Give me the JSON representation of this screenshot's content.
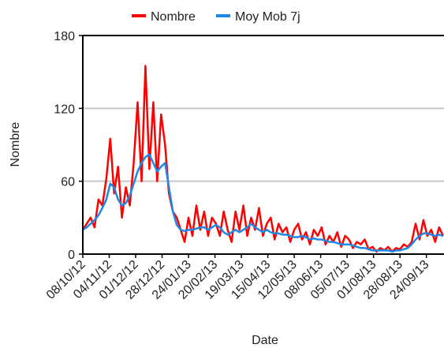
{
  "chart_data": {
    "type": "line",
    "xlabel": "Date",
    "ylabel": "Nombre",
    "x": [
      "08/10/12",
      "12/10/12",
      "16/10/12",
      "20/10/12",
      "24/10/12",
      "28/10/12",
      "01/11/12",
      "05/11/12",
      "09/11/12",
      "13/11/12",
      "17/11/12",
      "21/11/12",
      "25/11/12",
      "29/11/12",
      "03/12/12",
      "07/12/12",
      "11/12/12",
      "15/12/12",
      "19/12/12",
      "23/12/12",
      "27/12/12",
      "31/12/12",
      "04/01/13",
      "08/01/13",
      "12/01/13",
      "16/01/13",
      "20/01/13",
      "24/01/13",
      "28/01/13",
      "01/02/13",
      "05/02/13",
      "09/02/13",
      "13/02/13",
      "17/02/13",
      "21/02/13",
      "25/02/13",
      "01/03/13",
      "05/03/13",
      "09/03/13",
      "13/03/13",
      "17/03/13",
      "21/03/13",
      "25/03/13",
      "29/03/13",
      "02/04/13",
      "06/04/13",
      "10/04/13",
      "14/04/13",
      "18/04/13",
      "22/04/13",
      "26/04/13",
      "30/04/13",
      "04/05/13",
      "08/05/13",
      "12/05/13",
      "16/05/13",
      "20/05/13",
      "24/05/13",
      "28/05/13",
      "01/06/13",
      "05/06/13",
      "09/06/13",
      "13/06/13",
      "17/06/13",
      "21/06/13",
      "25/06/13",
      "29/06/13",
      "03/07/13",
      "07/07/13",
      "11/07/13",
      "15/07/13",
      "19/07/13",
      "23/07/13",
      "27/07/13",
      "31/07/13",
      "04/08/13",
      "08/08/13",
      "12/08/13",
      "16/08/13",
      "20/08/13",
      "24/08/13",
      "28/08/13",
      "01/09/13",
      "05/09/13",
      "09/09/13",
      "13/09/13",
      "17/09/13",
      "21/09/13",
      "25/09/13",
      "29/09/13",
      "03/10/13",
      "07/10/13",
      "11/10/13"
    ],
    "series": [
      {
        "name": "Nombre",
        "color": "#ff0000",
        "values": [
          20,
          25,
          30,
          22,
          45,
          40,
          62,
          95,
          50,
          72,
          30,
          55,
          40,
          75,
          125,
          60,
          155,
          70,
          125,
          60,
          115,
          90,
          50,
          35,
          30,
          20,
          10,
          30,
          15,
          40,
          20,
          35,
          15,
          30,
          25,
          15,
          35,
          20,
          10,
          35,
          20,
          40,
          15,
          30,
          20,
          38,
          15,
          25,
          30,
          12,
          25,
          18,
          22,
          10,
          20,
          25,
          12,
          18,
          8,
          20,
          15,
          22,
          8,
          15,
          10,
          18,
          6,
          15,
          12,
          5,
          10,
          8,
          12,
          4,
          6,
          2,
          5,
          3,
          6,
          2,
          5,
          4,
          8,
          6,
          10,
          25,
          12,
          28,
          15,
          20,
          10,
          22,
          15
        ]
      },
      {
        "name": "Moy Mob 7j",
        "color": "#1e88e5",
        "values": [
          20,
          22,
          25,
          28,
          32,
          38,
          45,
          58,
          55,
          45,
          40,
          42,
          48,
          58,
          68,
          75,
          80,
          82,
          75,
          68,
          72,
          75,
          55,
          35,
          24,
          20,
          19,
          20,
          20,
          21,
          22,
          22,
          20,
          22,
          24,
          22,
          18,
          16,
          18,
          20,
          18,
          20,
          22,
          25,
          22,
          20,
          18,
          20,
          18,
          17,
          17,
          16,
          16,
          15,
          14,
          14,
          15,
          14,
          12,
          13,
          12,
          12,
          11,
          10,
          10,
          9,
          8,
          8,
          8,
          7,
          6,
          5,
          5,
          4,
          3,
          3,
          3,
          3,
          3,
          2,
          3,
          3,
          4,
          5,
          8,
          12,
          15,
          17,
          17,
          16,
          15,
          16,
          15
        ]
      }
    ],
    "xlim": [
      "08/10/12",
      "12/10/13"
    ],
    "xticks": [
      "08/10/12",
      "04/11/12",
      "01/12/12",
      "28/12/12",
      "24/01/13",
      "20/02/13",
      "19/03/13",
      "15/04/13",
      "12/05/13",
      "08/06/13",
      "05/07/13",
      "01/08/13",
      "28/08/13",
      "24/09/13"
    ],
    "ylim": [
      0,
      180
    ],
    "yticks": [
      0,
      60,
      120,
      180
    ],
    "grid": true,
    "legend": "top"
  }
}
